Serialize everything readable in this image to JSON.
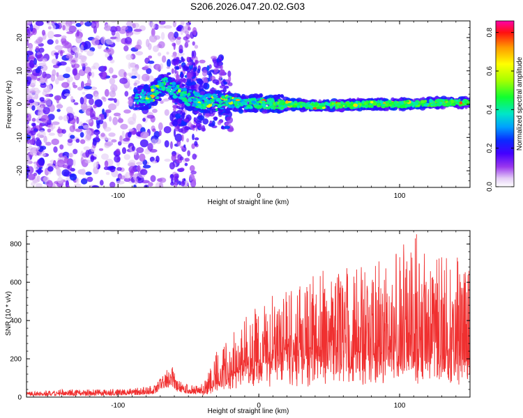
{
  "chart_data": [
    {
      "type": "heatmap",
      "title": "S206.2026.047.20.02.G03",
      "xlabel": "Height of straight line (km)",
      "ylabel": "Frequency (Hz)",
      "xlim": [
        -165,
        150
      ],
      "ylim": [
        -25,
        25
      ],
      "xticks": [
        -100,
        0,
        100
      ],
      "yticks": [
        -20,
        -10,
        0,
        10,
        20
      ],
      "colorbar": {
        "label": "Normalized spectral amplitude",
        "range": [
          0.0,
          0.86
        ],
        "ticks": [
          "0.0",
          "0.2",
          "0.4",
          "0.6",
          "0.8"
        ]
      },
      "ridge": {
        "x": [
          -88,
          -80,
          -72,
          -66,
          -60,
          -50,
          -40,
          -30,
          -20,
          -10,
          0,
          20,
          40,
          60,
          80,
          100,
          120,
          140,
          150
        ],
        "freq": [
          2,
          2,
          4,
          7,
          4,
          2,
          1,
          0.5,
          0.5,
          0.2,
          0.2,
          0,
          -0.5,
          -0.3,
          0,
          0,
          0.3,
          0.5,
          0.6
        ]
      }
    },
    {
      "type": "line",
      "xlabel": "Height of straight line (km)",
      "ylabel": "SNR (10 * v/v)",
      "xlim": [
        -165,
        150
      ],
      "ylim": [
        0,
        870
      ],
      "xticks": [
        -100,
        0,
        100
      ],
      "yticks": [
        0,
        200,
        400,
        600,
        800
      ],
      "color": "#f03030",
      "envelope": {
        "x": [
          -165,
          -140,
          -110,
          -90,
          -75,
          -68,
          -62,
          -58,
          -52,
          -45,
          -40,
          -35,
          -30,
          -25,
          -20,
          -10,
          0,
          10,
          20,
          30,
          40,
          50,
          60,
          70,
          80,
          90,
          100,
          110,
          120,
          130,
          140,
          150
        ],
        "max": [
          30,
          40,
          40,
          45,
          60,
          120,
          170,
          90,
          70,
          60,
          80,
          150,
          250,
          330,
          360,
          400,
          480,
          530,
          620,
          700,
          650,
          640,
          720,
          760,
          700,
          760,
          850,
          860,
          720,
          800,
          750,
          760
        ],
        "base": [
          8,
          8,
          8,
          10,
          15,
          40,
          60,
          30,
          20,
          15,
          20,
          40,
          60,
          80,
          100,
          130,
          150,
          170,
          170,
          180,
          180,
          170,
          180,
          190,
          180,
          190,
          200,
          190,
          180,
          190,
          180,
          180
        ]
      }
    }
  ]
}
